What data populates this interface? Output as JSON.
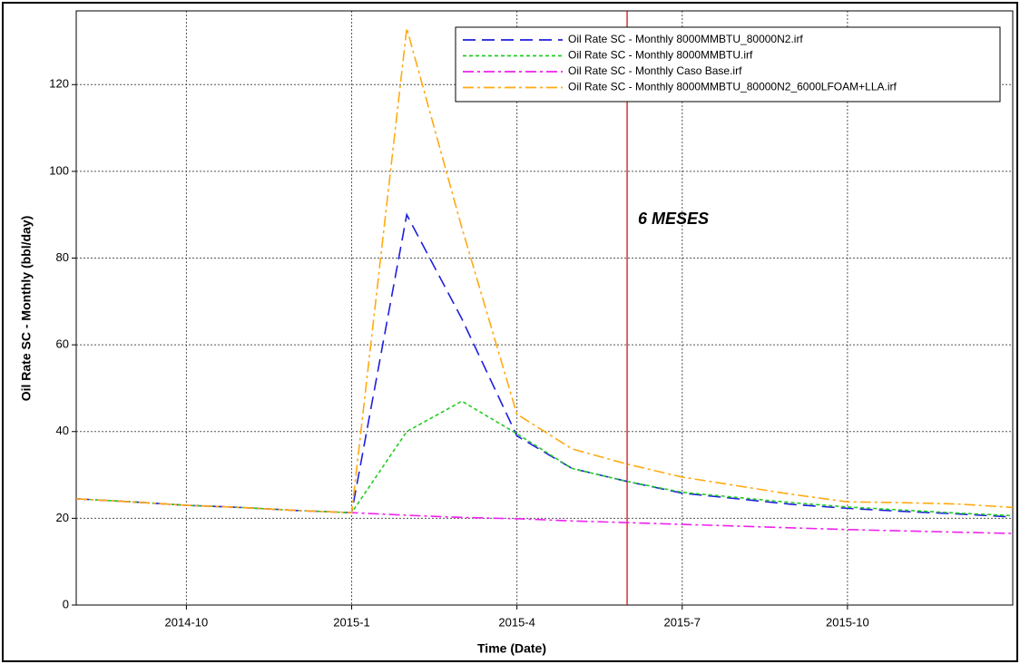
{
  "chart_data": {
    "type": "line",
    "x_label": "Time (Date)",
    "y_label": "Oil Rate SC - Monthly (bbl/day)",
    "annotation": "6 MESES",
    "vline": "2015-6",
    "vline_color": "#cc0000",
    "x": [
      "2014-8",
      "2014-9",
      "2014-10",
      "2014-11",
      "2014-12",
      "2015-1",
      "2015-2",
      "2015-3",
      "2015-4",
      "2015-5",
      "2015-6",
      "2015-7",
      "2015-8",
      "2015-9",
      "2015-10",
      "2015-11",
      "2015-12",
      "2016-1"
    ],
    "xlim": [
      "2014-8",
      "2016-1"
    ],
    "xticks": [
      "2014-10",
      "2015-1",
      "2015-4",
      "2015-7",
      "2015-10"
    ],
    "ylim": [
      0,
      137
    ],
    "yticks": [
      0,
      20,
      40,
      60,
      80,
      100,
      120
    ],
    "grid": true,
    "legend": "top-right",
    "series": [
      {
        "name": "Oil Rate SC - Monthly 8000MMBTU_80000N2.irf",
        "color": "#1f1fdd",
        "dash": "14 7",
        "values": [
          24.5,
          23.8,
          23,
          22.5,
          21.8,
          21.3,
          90,
          66,
          39,
          31.5,
          28.5,
          25.8,
          24.5,
          23.2,
          22.3,
          21.6,
          21,
          20.3
        ]
      },
      {
        "name": "Oil Rate SC - Monthly 8000MMBTU.irf",
        "color": "#22cc22",
        "dash": "4 3",
        "values": [
          24.5,
          23.8,
          23,
          22.5,
          21.8,
          21.3,
          40,
          47,
          39.5,
          31.5,
          28.5,
          26,
          24.8,
          23.6,
          22.6,
          21.9,
          21.2,
          20.6
        ]
      },
      {
        "name": "Oil Rate SC - Monthly Caso Base.irf",
        "color": "#ee22ee",
        "dash": "12 4 3 4",
        "values": [
          24.5,
          23.8,
          23,
          22.5,
          21.8,
          21.3,
          20.7,
          20.2,
          19.9,
          19.4,
          19,
          18.6,
          18.2,
          17.8,
          17.4,
          17.1,
          16.8,
          16.5
        ]
      },
      {
        "name": "Oil Rate SC - Monthly 8000MMBTU_80000N2_6000LFOAM+LLA.irf",
        "color": "#ffaa11",
        "dash": "12 4 3 4",
        "values": [
          24.5,
          23.8,
          23,
          22.5,
          21.8,
          21.3,
          133,
          87,
          44,
          36,
          32.5,
          29.5,
          27.5,
          25.5,
          23.8,
          23.6,
          23.3,
          22.5
        ]
      }
    ]
  }
}
